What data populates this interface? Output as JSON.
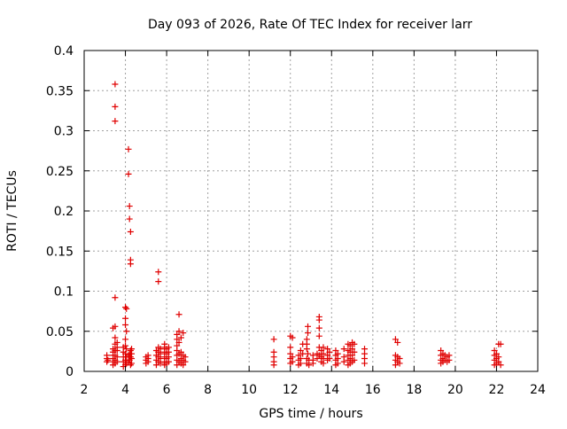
{
  "chart_data": {
    "type": "scatter",
    "title": "Day 093 of 2026, Rate Of TEC Index for receiver larr",
    "xlabel": "GPS time / hours",
    "ylabel": "ROTI / TECUs",
    "xlim": [
      2,
      24
    ],
    "ylim": [
      0,
      0.4
    ],
    "x_ticks": [
      2,
      4,
      6,
      8,
      10,
      12,
      14,
      16,
      18,
      20,
      22,
      24
    ],
    "x_tick_labels": [
      "2",
      "4",
      "6",
      "8",
      "10",
      "12",
      "14",
      "16",
      "18",
      "20",
      "22",
      "24"
    ],
    "y_ticks": [
      0,
      0.05,
      0.1,
      0.15,
      0.2,
      0.25,
      0.3,
      0.35,
      0.4
    ],
    "y_tick_labels": [
      "0",
      "0.05",
      "0.1",
      "0.15",
      "0.2",
      "0.25",
      "0.3",
      "0.35",
      "0.4"
    ],
    "grid": true,
    "marker": "+",
    "color": "#e00000",
    "series": [
      {
        "name": "ROTI",
        "points": [
          [
            3.1,
            0.012
          ],
          [
            3.1,
            0.016
          ],
          [
            3.1,
            0.02
          ],
          [
            3.15,
            0.014
          ],
          [
            3.4,
            0.008
          ],
          [
            3.4,
            0.012
          ],
          [
            3.4,
            0.016
          ],
          [
            3.4,
            0.02
          ],
          [
            3.4,
            0.024
          ],
          [
            3.4,
            0.028
          ],
          [
            3.4,
            0.054
          ],
          [
            3.5,
            0.358
          ],
          [
            3.5,
            0.33
          ],
          [
            3.5,
            0.312
          ],
          [
            3.5,
            0.092
          ],
          [
            3.5,
            0.056
          ],
          [
            3.5,
            0.042
          ],
          [
            3.5,
            0.034
          ],
          [
            3.5,
            0.026
          ],
          [
            3.5,
            0.02
          ],
          [
            3.5,
            0.014
          ],
          [
            3.5,
            0.01
          ],
          [
            3.6,
            0.018
          ],
          [
            3.6,
            0.026
          ],
          [
            3.6,
            0.03
          ],
          [
            3.6,
            0.036
          ],
          [
            3.6,
            0.012
          ],
          [
            3.9,
            0.006
          ],
          [
            3.9,
            0.012
          ],
          [
            3.9,
            0.018
          ],
          [
            3.9,
            0.024
          ],
          [
            3.9,
            0.03
          ],
          [
            4.0,
            0.08
          ],
          [
            4.0,
            0.066
          ],
          [
            4.0,
            0.058
          ],
          [
            4.0,
            0.04
          ],
          [
            4.0,
            0.032
          ],
          [
            4.0,
            0.022
          ],
          [
            4.0,
            0.014
          ],
          [
            4.0,
            0.008
          ],
          [
            4.05,
            0.078
          ],
          [
            4.05,
            0.05
          ],
          [
            4.05,
            0.028
          ],
          [
            4.05,
            0.018
          ],
          [
            4.05,
            0.01
          ],
          [
            4.15,
            0.277
          ],
          [
            4.15,
            0.246
          ],
          [
            4.15,
            0.02
          ],
          [
            4.15,
            0.012
          ],
          [
            4.2,
            0.206
          ],
          [
            4.2,
            0.19
          ],
          [
            4.2,
            0.014
          ],
          [
            4.2,
            0.022
          ],
          [
            4.25,
            0.174
          ],
          [
            4.25,
            0.139
          ],
          [
            4.25,
            0.134
          ],
          [
            4.25,
            0.026
          ],
          [
            4.25,
            0.018
          ],
          [
            4.25,
            0.008
          ],
          [
            4.3,
            0.01
          ],
          [
            4.3,
            0.016
          ],
          [
            4.3,
            0.022
          ],
          [
            4.3,
            0.028
          ],
          [
            5.0,
            0.01
          ],
          [
            5.0,
            0.014
          ],
          [
            5.0,
            0.018
          ],
          [
            5.1,
            0.012
          ],
          [
            5.1,
            0.016
          ],
          [
            5.1,
            0.02
          ],
          [
            5.5,
            0.008
          ],
          [
            5.5,
            0.014
          ],
          [
            5.5,
            0.02
          ],
          [
            5.5,
            0.026
          ],
          [
            5.6,
            0.124
          ],
          [
            5.6,
            0.112
          ],
          [
            5.6,
            0.03
          ],
          [
            5.6,
            0.024
          ],
          [
            5.6,
            0.018
          ],
          [
            5.6,
            0.012
          ],
          [
            5.7,
            0.01
          ],
          [
            5.7,
            0.016
          ],
          [
            5.7,
            0.022
          ],
          [
            5.7,
            0.028
          ],
          [
            5.9,
            0.008
          ],
          [
            5.9,
            0.012
          ],
          [
            5.9,
            0.018
          ],
          [
            5.9,
            0.024
          ],
          [
            5.9,
            0.03
          ],
          [
            5.9,
            0.034
          ],
          [
            6.0,
            0.01
          ],
          [
            6.0,
            0.016
          ],
          [
            6.0,
            0.022
          ],
          [
            6.0,
            0.028
          ],
          [
            6.1,
            0.012
          ],
          [
            6.1,
            0.018
          ],
          [
            6.1,
            0.024
          ],
          [
            6.1,
            0.03
          ],
          [
            6.5,
            0.008
          ],
          [
            6.5,
            0.014
          ],
          [
            6.5,
            0.02
          ],
          [
            6.5,
            0.026
          ],
          [
            6.5,
            0.032
          ],
          [
            6.5,
            0.04
          ],
          [
            6.5,
            0.046
          ],
          [
            6.6,
            0.071
          ],
          [
            6.6,
            0.05
          ],
          [
            6.6,
            0.036
          ],
          [
            6.6,
            0.022
          ],
          [
            6.6,
            0.012
          ],
          [
            6.7,
            0.01
          ],
          [
            6.7,
            0.016
          ],
          [
            6.7,
            0.024
          ],
          [
            6.7,
            0.042
          ],
          [
            6.8,
            0.048
          ],
          [
            6.8,
            0.02
          ],
          [
            6.8,
            0.014
          ],
          [
            6.8,
            0.008
          ],
          [
            6.9,
            0.012
          ],
          [
            6.9,
            0.018
          ],
          [
            11.2,
            0.04
          ],
          [
            11.2,
            0.024
          ],
          [
            11.2,
            0.018
          ],
          [
            11.2,
            0.012
          ],
          [
            11.2,
            0.008
          ],
          [
            12.0,
            0.044
          ],
          [
            12.0,
            0.03
          ],
          [
            12.0,
            0.022
          ],
          [
            12.0,
            0.016
          ],
          [
            12.0,
            0.01
          ],
          [
            12.1,
            0.042
          ],
          [
            12.1,
            0.018
          ],
          [
            12.1,
            0.012
          ],
          [
            12.4,
            0.02
          ],
          [
            12.4,
            0.014
          ],
          [
            12.4,
            0.008
          ],
          [
            12.5,
            0.026
          ],
          [
            12.5,
            0.016
          ],
          [
            12.5,
            0.01
          ],
          [
            12.6,
            0.034
          ],
          [
            12.6,
            0.022
          ],
          [
            12.8,
            0.04
          ],
          [
            12.8,
            0.034
          ],
          [
            12.8,
            0.028
          ],
          [
            12.8,
            0.016
          ],
          [
            12.8,
            0.01
          ],
          [
            12.85,
            0.056
          ],
          [
            12.85,
            0.048
          ],
          [
            12.85,
            0.022
          ],
          [
            12.9,
            0.014
          ],
          [
            12.9,
            0.008
          ],
          [
            13.1,
            0.02
          ],
          [
            13.1,
            0.014
          ],
          [
            13.1,
            0.01
          ],
          [
            13.3,
            0.022
          ],
          [
            13.3,
            0.016
          ],
          [
            13.4,
            0.068
          ],
          [
            13.4,
            0.064
          ],
          [
            13.4,
            0.054
          ],
          [
            13.4,
            0.044
          ],
          [
            13.4,
            0.03
          ],
          [
            13.4,
            0.02
          ],
          [
            13.5,
            0.026
          ],
          [
            13.5,
            0.018
          ],
          [
            13.5,
            0.012
          ],
          [
            13.6,
            0.03
          ],
          [
            13.6,
            0.022
          ],
          [
            13.6,
            0.016
          ],
          [
            13.6,
            0.01
          ],
          [
            13.8,
            0.028
          ],
          [
            13.8,
            0.02
          ],
          [
            13.8,
            0.014
          ],
          [
            13.9,
            0.024
          ],
          [
            13.9,
            0.016
          ],
          [
            14.2,
            0.026
          ],
          [
            14.2,
            0.02
          ],
          [
            14.2,
            0.014
          ],
          [
            14.2,
            0.008
          ],
          [
            14.3,
            0.022
          ],
          [
            14.3,
            0.016
          ],
          [
            14.3,
            0.01
          ],
          [
            14.6,
            0.028
          ],
          [
            14.6,
            0.018
          ],
          [
            14.6,
            0.012
          ],
          [
            14.8,
            0.034
          ],
          [
            14.8,
            0.026
          ],
          [
            14.8,
            0.02
          ],
          [
            14.8,
            0.014
          ],
          [
            14.8,
            0.008
          ],
          [
            14.9,
            0.032
          ],
          [
            14.9,
            0.024
          ],
          [
            14.9,
            0.016
          ],
          [
            14.9,
            0.01
          ],
          [
            15.0,
            0.036
          ],
          [
            15.0,
            0.028
          ],
          [
            15.0,
            0.02
          ],
          [
            15.0,
            0.012
          ],
          [
            15.1,
            0.034
          ],
          [
            15.1,
            0.024
          ],
          [
            15.1,
            0.014
          ],
          [
            15.6,
            0.028
          ],
          [
            15.6,
            0.022
          ],
          [
            15.6,
            0.016
          ],
          [
            15.6,
            0.01
          ],
          [
            17.1,
            0.04
          ],
          [
            17.1,
            0.02
          ],
          [
            17.1,
            0.014
          ],
          [
            17.1,
            0.008
          ],
          [
            17.2,
            0.036
          ],
          [
            17.2,
            0.018
          ],
          [
            17.2,
            0.012
          ],
          [
            17.3,
            0.016
          ],
          [
            17.3,
            0.01
          ],
          [
            19.3,
            0.026
          ],
          [
            19.3,
            0.02
          ],
          [
            19.3,
            0.014
          ],
          [
            19.3,
            0.01
          ],
          [
            19.4,
            0.022
          ],
          [
            19.4,
            0.016
          ],
          [
            19.4,
            0.012
          ],
          [
            19.5,
            0.02
          ],
          [
            19.5,
            0.014
          ],
          [
            19.6,
            0.018
          ],
          [
            19.6,
            0.012
          ],
          [
            19.7,
            0.02
          ],
          [
            19.7,
            0.014
          ],
          [
            21.9,
            0.026
          ],
          [
            21.9,
            0.02
          ],
          [
            21.9,
            0.014
          ],
          [
            21.9,
            0.008
          ],
          [
            22.0,
            0.022
          ],
          [
            22.0,
            0.016
          ],
          [
            22.0,
            0.01
          ],
          [
            22.1,
            0.034
          ],
          [
            22.1,
            0.018
          ],
          [
            22.1,
            0.012
          ],
          [
            22.2,
            0.034
          ],
          [
            22.2,
            0.008
          ]
        ]
      }
    ]
  }
}
